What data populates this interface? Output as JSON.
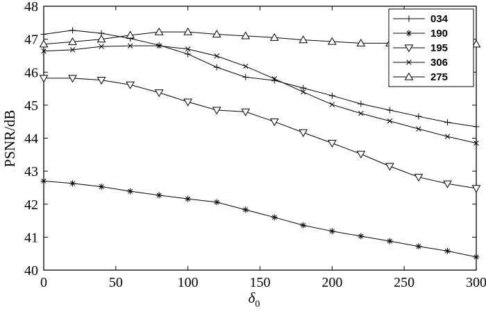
{
  "chart_data": {
    "type": "line",
    "xlabel": "δ",
    "xlabel_subscript": "0",
    "ylabel": "PSNR/dB",
    "xlim": [
      0,
      300
    ],
    "ylim": [
      40,
      48
    ],
    "x_ticks": [
      0,
      50,
      100,
      150,
      200,
      250,
      300
    ],
    "y_ticks": [
      40,
      41,
      42,
      43,
      44,
      45,
      46,
      47,
      48
    ],
    "grid": false,
    "legend_position": "top-right",
    "x": [
      0,
      20,
      40,
      60,
      80,
      100,
      120,
      140,
      160,
      180,
      200,
      220,
      240,
      260,
      280,
      300
    ],
    "series": [
      {
        "name": "034",
        "marker": "plus",
        "values": [
          47.15,
          47.27,
          47.18,
          47.02,
          46.82,
          46.55,
          46.15,
          45.85,
          45.75,
          45.52,
          45.29,
          45.04,
          44.85,
          44.66,
          44.48,
          44.35
        ]
      },
      {
        "name": "190",
        "marker": "asterisk",
        "values": [
          42.7,
          42.63,
          42.53,
          42.39,
          42.27,
          42.16,
          42.06,
          41.83,
          41.6,
          41.36,
          41.18,
          41.03,
          40.88,
          40.72,
          40.58,
          40.4
        ]
      },
      {
        "name": "195",
        "marker": "triangle-down",
        "values": [
          45.82,
          45.82,
          45.76,
          45.62,
          45.38,
          45.1,
          44.85,
          44.8,
          44.5,
          44.17,
          43.85,
          43.52,
          43.15,
          42.82,
          42.62,
          42.48
        ]
      },
      {
        "name": "306",
        "marker": "x",
        "values": [
          46.64,
          46.68,
          46.78,
          46.8,
          46.8,
          46.7,
          46.49,
          46.18,
          45.8,
          45.4,
          45.02,
          44.75,
          44.52,
          44.28,
          44.05,
          43.85
        ]
      },
      {
        "name": "275",
        "marker": "triangle-up",
        "values": [
          46.85,
          46.92,
          47.0,
          47.12,
          47.22,
          47.22,
          47.15,
          47.1,
          47.05,
          46.98,
          46.93,
          46.88,
          46.88,
          null,
          null,
          46.85
        ]
      }
    ]
  }
}
